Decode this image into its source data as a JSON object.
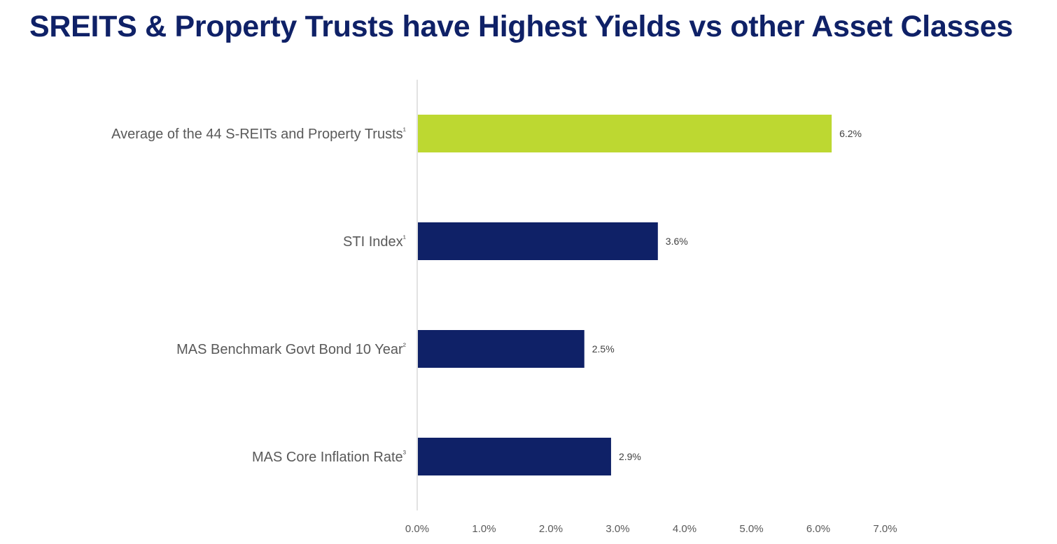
{
  "page": {
    "title": "SREITS & Property Trusts have Highest Yields vs other Asset Classes"
  },
  "colors": {
    "title": "#0f2167",
    "highlight_bar": "#bdd831",
    "bar": "#0f2167",
    "axis_line": "#d9d9d9"
  },
  "chart_data": {
    "type": "bar",
    "orientation": "horizontal",
    "categories": [
      "Average of the 44 S-REITs and Property Trusts¹",
      "STI Index¹",
      "MAS Benchmark Govt Bond 10 Year²",
      "MAS Core Inflation Rate³"
    ],
    "values": [
      6.2,
      3.6,
      2.5,
      2.9
    ],
    "data_labels": [
      "6.2%",
      "3.6%",
      "2.5%",
      "2.9%"
    ],
    "highlight_index": 0,
    "x_ticks": [
      "0.0%",
      "1.0%",
      "2.0%",
      "3.0%",
      "4.0%",
      "5.0%",
      "6.0%",
      "7.0%"
    ],
    "xlim": [
      0,
      7
    ],
    "title": "SREITS & Property Trusts have Highest Yields vs other Asset Classes",
    "xlabel": "",
    "ylabel": "",
    "grid": false,
    "legend": "none"
  }
}
